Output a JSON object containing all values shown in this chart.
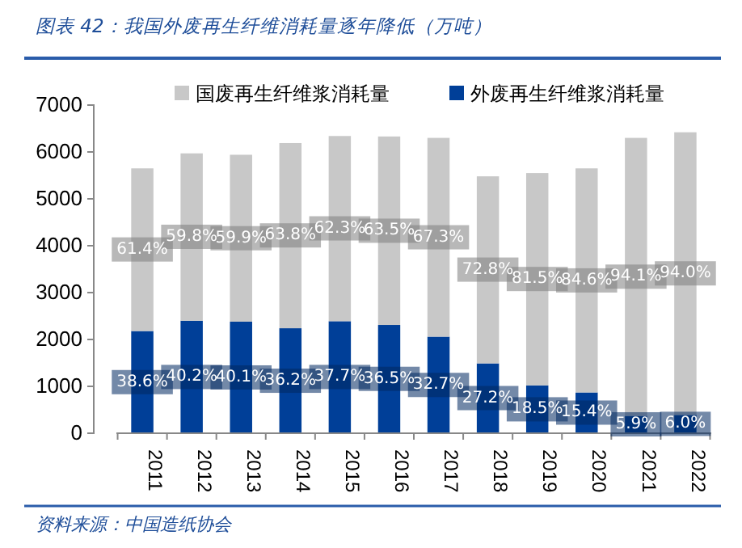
{
  "chart_data": {
    "type": "bar",
    "stacked": true,
    "title": "图表 42：我国外废再生纤维消耗量逐年降低（万吨）",
    "annotations": [
      "资料来源：中国造纸协会",
      {
        "text": "38.6%",
        "x": "2011",
        "y": 1090
      },
      {
        "text": "40.2%",
        "x": "2012",
        "y": 1200
      },
      {
        "text": "40.1%",
        "x": "2013",
        "y": 1190
      },
      {
        "text": "36.2%",
        "x": "2014",
        "y": 1120
      },
      {
        "text": "37.7%",
        "x": "2015",
        "y": 1200
      },
      {
        "text": "36.5%",
        "x": "2016",
        "y": 1160
      },
      {
        "text": "32.7%",
        "x": "2017",
        "y": 1030
      },
      {
        "text": "27.2%",
        "x": "2018",
        "y": 750
      },
      {
        "text": "18.5%",
        "x": "2019",
        "y": 510
      },
      {
        "text": "15.4%",
        "x": "2020",
        "y": 440
      },
      {
        "text": "5.9%",
        "x": "2021",
        "y": 190
      },
      {
        "text": "6.0%",
        "x": "2022",
        "y": 200
      },
      {
        "text": "61.4%",
        "x": "2011",
        "y": 3920
      },
      {
        "text": "59.8%",
        "x": "2012",
        "y": 4190
      },
      {
        "text": "59.9%",
        "x": "2013",
        "y": 4160
      },
      {
        "text": "63.8%",
        "x": "2014",
        "y": 4220
      },
      {
        "text": "62.3%",
        "x": "2015",
        "y": 4370
      },
      {
        "text": "63.5%",
        "x": "2016",
        "y": 4320
      },
      {
        "text": "67.3%",
        "x": "2017",
        "y": 4180
      },
      {
        "text": "72.8%",
        "x": "2018",
        "y": 3490
      },
      {
        "text": "81.5%",
        "x": "2019",
        "y": 3290
      },
      {
        "text": "84.6%",
        "x": "2020",
        "y": 3260
      },
      {
        "text": "94.1%",
        "x": "2021",
        "y": 3340
      },
      {
        "text": "94.0%",
        "x": "2022",
        "y": 3410
      }
    ],
    "categories": [
      "2011",
      "2012",
      "2013",
      "2014",
      "2015",
      "2016",
      "2017",
      "2018",
      "2019",
      "2020",
      "2021",
      "2022"
    ],
    "series": [
      {
        "name": "外废再生纤维浆消耗量",
        "color": "#003f98",
        "values": [
          2180,
          2400,
          2380,
          2240,
          2390,
          2310,
          2060,
          1490,
          1020,
          870,
          370,
          390
        ]
      },
      {
        "name": "国废再生纤维浆消耗量",
        "color": "#c8c8c8",
        "values": [
          3470,
          3570,
          3560,
          3950,
          3950,
          4020,
          4240,
          3990,
          4530,
          4780,
          5930,
          6030
        ]
      }
    ],
    "ylim": [
      0,
      7000
    ],
    "yticks": [
      0,
      1000,
      2000,
      3000,
      4000,
      5000,
      6000,
      7000
    ],
    "grid": false,
    "legend": "top"
  }
}
